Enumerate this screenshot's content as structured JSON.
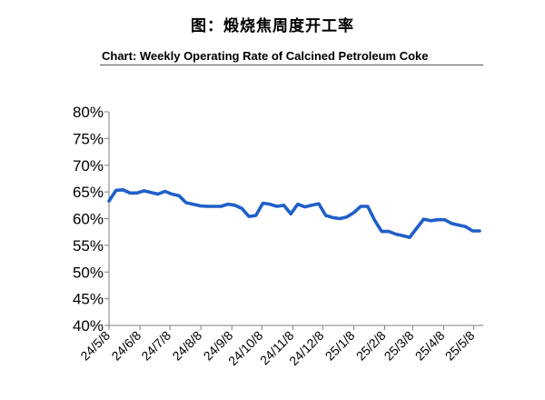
{
  "figure": {
    "title_cn": "图：煅烧焦周度开工率"
  },
  "chart_data": {
    "type": "line",
    "title": "Chart: Weekly Operating Rate of Calcined Petroleum Coke",
    "xlabel": "",
    "ylabel": "",
    "ylim": [
      40,
      80
    ],
    "yticks": [
      "40%",
      "45%",
      "50%",
      "55%",
      "60%",
      "65%",
      "70%",
      "75%",
      "80%"
    ],
    "ytick_values": [
      40,
      45,
      50,
      55,
      60,
      65,
      70,
      75,
      80
    ],
    "xticks": [
      "24/5/8",
      "24/6/8",
      "24/7/8",
      "24/8/8",
      "24/9/8",
      "24/10/8",
      "24/11/8",
      "24/12/8",
      "25/1/8",
      "25/2/8",
      "25/3/8",
      "25/4/8",
      "25/5/8"
    ],
    "grid": false,
    "legend": "none",
    "series_color": "#1f5fc8",
    "series": [
      {
        "name": "Weekly Operating Rate of Calcined Petroleum Coke",
        "x_weeks": [
          0,
          1,
          2,
          3,
          4,
          5,
          6,
          7,
          8,
          9,
          10,
          11,
          12,
          13,
          14,
          15,
          16,
          17,
          18,
          19,
          20,
          21,
          22,
          23,
          24,
          25,
          26,
          27,
          28,
          29,
          30,
          31,
          32,
          33,
          34,
          35,
          36,
          37,
          38,
          39,
          40,
          41,
          42,
          43,
          44,
          45,
          46,
          47,
          48,
          49,
          50,
          51,
          52,
          53
        ],
        "values": [
          63.3,
          65.3,
          65.4,
          64.8,
          64.8,
          65.2,
          64.9,
          64.6,
          65.1,
          64.6,
          64.3,
          63.0,
          62.7,
          62.4,
          62.3,
          62.3,
          62.3,
          62.7,
          62.5,
          61.9,
          60.4,
          60.6,
          62.9,
          62.7,
          62.3,
          62.5,
          60.9,
          62.7,
          62.2,
          62.5,
          62.8,
          60.6,
          60.2,
          60.0,
          60.3,
          61.1,
          62.3,
          62.3,
          59.7,
          57.6,
          57.6,
          57.1,
          56.8,
          56.5,
          58.2,
          59.9,
          59.6,
          59.8,
          59.8,
          59.1,
          58.8,
          58.5,
          57.7,
          57.7
        ]
      }
    ]
  }
}
